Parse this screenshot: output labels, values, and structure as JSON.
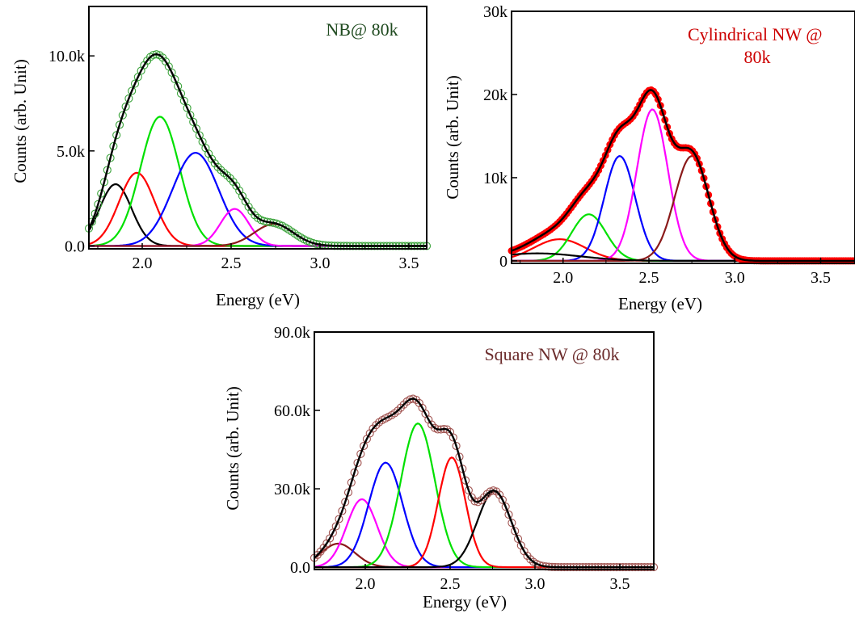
{
  "colors": {
    "black": "#000000",
    "red": "#ff0000",
    "green": "#00e000",
    "blue": "#0000ff",
    "magenta": "#ff00ff",
    "brown": "#8b1a1a",
    "nb_markers": "#3aa33a",
    "cyl_markers": "#ff0000",
    "sq_markers": "#a0524f",
    "nb_title": "#1f4a1f",
    "cyl_title": "#cc0000",
    "sq_title": "#6b2b2b"
  },
  "chart_data": [
    {
      "id": "nb",
      "type": "line",
      "title_lines": [
        "NB@ 80k"
      ],
      "title_color": "#1f4a1f",
      "xlabel": "Energy (eV)",
      "ylabel": "Counts (arb. Unit)",
      "xlim": [
        1.7,
        3.6
      ],
      "ylim": [
        -150,
        12600
      ],
      "xticks": [
        2.0,
        2.5,
        3.0,
        3.5
      ],
      "xtick_labels": [
        "2.0",
        "2.5",
        "3.0",
        "3.5"
      ],
      "yticks": [
        0,
        5000,
        10000
      ],
      "ytick_labels": [
        "0.0",
        "5.0k",
        "10.0k"
      ],
      "marker_color": "#3aa33a",
      "marker_style": "open-circle",
      "peaks": [
        {
          "color": "#000000",
          "center": 1.85,
          "amplitude": 3250,
          "width": 0.09
        },
        {
          "color": "#ff0000",
          "center": 1.97,
          "amplitude": 3850,
          "width": 0.1
        },
        {
          "color": "#00e000",
          "center": 2.1,
          "amplitude": 6800,
          "width": 0.11
        },
        {
          "color": "#0000ff",
          "center": 2.3,
          "amplitude": 4900,
          "width": 0.13
        },
        {
          "color": "#ff00ff",
          "center": 2.52,
          "amplitude": 1950,
          "width": 0.08
        },
        {
          "color": "#8b1a1a",
          "center": 2.74,
          "amplitude": 1150,
          "width": 0.11
        }
      ]
    },
    {
      "id": "cylindrical",
      "type": "line",
      "title_lines": [
        "Cylindrical NW @",
        "80k"
      ],
      "title_color": "#cc0000",
      "xlabel": "Energy (eV)",
      "ylabel": "Counts (arb. Unit)",
      "xlim": [
        1.7,
        3.7
      ],
      "ylim": [
        -300,
        30000
      ],
      "xticks": [
        2.0,
        2.5,
        3.0,
        3.5
      ],
      "xtick_labels": [
        "2.0",
        "2.5",
        "3.0",
        "3.5"
      ],
      "yticks": [
        0,
        10000,
        20000,
        30000
      ],
      "ytick_labels": [
        "0",
        "10k",
        "20k",
        "30k"
      ],
      "marker_color": "#ff0000",
      "marker_style": "filled-circle",
      "peaks": [
        {
          "color": "#ff0000",
          "center": 1.98,
          "amplitude": 2600,
          "width": 0.15
        },
        {
          "color": "#00e000",
          "center": 2.15,
          "amplitude": 5600,
          "width": 0.1
        },
        {
          "color": "#0000ff",
          "center": 2.33,
          "amplitude": 12600,
          "width": 0.09
        },
        {
          "color": "#ff00ff",
          "center": 2.52,
          "amplitude": 18200,
          "width": 0.09
        },
        {
          "color": "#8b1a1a",
          "center": 2.75,
          "amplitude": 12600,
          "width": 0.1
        },
        {
          "color": "#000000",
          "center": 1.85,
          "amplitude": 900,
          "width": 0.25
        }
      ]
    },
    {
      "id": "square",
      "type": "line",
      "title_lines": [
        "Square NW @ 80k"
      ],
      "title_color": "#6b2b2b",
      "xlabel": "Energy (eV)",
      "ylabel": "Counts (arb. Unit)",
      "xlim": [
        1.7,
        3.7
      ],
      "ylim": [
        -900,
        90000
      ],
      "xticks": [
        2.0,
        2.5,
        3.0,
        3.5
      ],
      "xtick_labels": [
        "2.0",
        "2.5",
        "3.0",
        "3.5"
      ],
      "yticks": [
        0,
        30000,
        60000,
        90000
      ],
      "ytick_labels": [
        "0.0",
        "30.0k",
        "60.0k",
        "90.0k"
      ],
      "marker_color": "#a0524f",
      "marker_style": "open-circle",
      "peaks": [
        {
          "color": "#8b1a1a",
          "center": 1.84,
          "amplitude": 9000,
          "width": 0.1
        },
        {
          "color": "#ff00ff",
          "center": 1.98,
          "amplitude": 26000,
          "width": 0.09
        },
        {
          "color": "#0000ff",
          "center": 2.12,
          "amplitude": 40000,
          "width": 0.1
        },
        {
          "color": "#00e000",
          "center": 2.31,
          "amplitude": 55000,
          "width": 0.1
        },
        {
          "color": "#ff0000",
          "center": 2.51,
          "amplitude": 42000,
          "width": 0.08
        },
        {
          "color": "#000000",
          "center": 2.76,
          "amplitude": 29000,
          "width": 0.1
        }
      ]
    }
  ]
}
